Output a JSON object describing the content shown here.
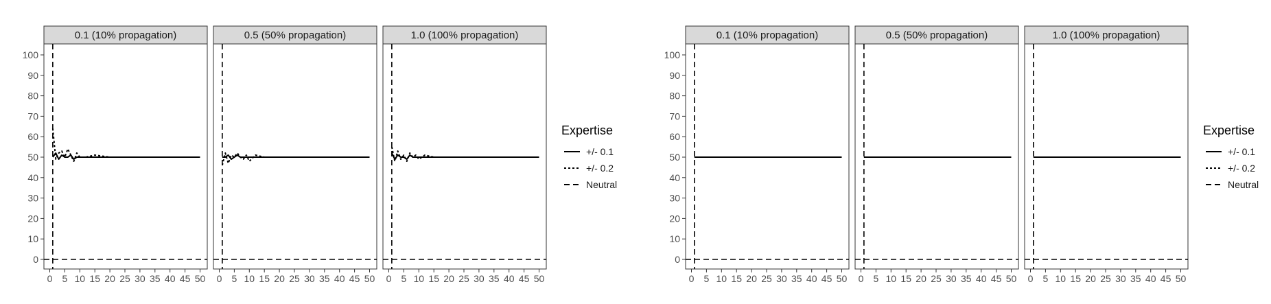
{
  "chart_data": [
    {
      "type": "line",
      "x_ticks": [
        0,
        5,
        10,
        15,
        20,
        25,
        30,
        35,
        40,
        45,
        50
      ],
      "y_ticks": [
        0,
        10,
        20,
        30,
        40,
        50,
        60,
        70,
        80,
        90,
        100
      ],
      "xlim": [
        0,
        50
      ],
      "ylim": [
        0,
        100
      ],
      "grid": false,
      "legend": {
        "title": "Expertise",
        "placement": "right",
        "items": [
          {
            "label": "+/- 0.1",
            "dash": "solid"
          },
          {
            "label": "+/- 0.2",
            "dash": "dotted"
          },
          {
            "label": "Neutral",
            "dash": "dashed"
          }
        ]
      },
      "reference_lines": {
        "vertical_x": 1,
        "horizontal_y": 0
      },
      "facets": [
        {
          "label": "0.1 (10% propagation)",
          "series": [
            {
              "name": "+/- 0.1",
              "x": [
                1,
                2,
                3,
                4,
                5,
                6,
                7,
                8,
                9,
                10,
                12,
                15,
                20,
                25,
                30,
                35,
                40,
                45,
                50
              ],
              "y": [
                50,
                52,
                49,
                51,
                50,
                50,
                51,
                49,
                50,
                50,
                50,
                50,
                50,
                50,
                50,
                50,
                50,
                50,
                50
              ]
            },
            {
              "name": "+/- 0.2",
              "x": [
                1,
                2,
                3,
                4,
                5,
                6,
                7,
                8,
                9,
                10,
                12,
                15,
                20,
                25,
                30,
                35,
                40,
                45,
                50
              ],
              "y": [
                64,
                49,
                52,
                53,
                50,
                54,
                51,
                48,
                52,
                50,
                50,
                51,
                50,
                50,
                50,
                50,
                50,
                50,
                50
              ]
            }
          ]
        },
        {
          "label": "0.5 (50% propagation)",
          "series": [
            {
              "name": "+/- 0.1",
              "x": [
                1,
                2,
                3,
                4,
                5,
                6,
                7,
                8,
                9,
                10,
                12,
                15,
                20,
                25,
                30,
                35,
                40,
                45,
                50
              ],
              "y": [
                50,
                50,
                51,
                49,
                50,
                51,
                50,
                50,
                50,
                50,
                50,
                50,
                50,
                50,
                50,
                50,
                50,
                50,
                50
              ]
            },
            {
              "name": "+/- 0.2",
              "x": [
                1,
                2,
                3,
                4,
                5,
                6,
                7,
                8,
                9,
                10,
                12,
                15,
                20,
                25,
                30,
                35,
                40,
                45,
                50
              ],
              "y": [
                46,
                52,
                47,
                51,
                50,
                52,
                50,
                49,
                51,
                48,
                51,
                50,
                50,
                50,
                50,
                50,
                50,
                50,
                50
              ]
            }
          ]
        },
        {
          "label": "1.0 (100% propagation)",
          "series": [
            {
              "name": "+/- 0.1",
              "x": [
                1,
                2,
                3,
                4,
                5,
                6,
                7,
                8,
                9,
                10,
                12,
                15,
                20,
                25,
                30,
                35,
                40,
                45,
                50
              ],
              "y": [
                52,
                49,
                51,
                50,
                50,
                49,
                51,
                50,
                50,
                50,
                50,
                50,
                50,
                50,
                50,
                50,
                50,
                50,
                50
              ]
            },
            {
              "name": "+/- 0.2",
              "x": [
                1,
                2,
                3,
                4,
                5,
                6,
                7,
                8,
                9,
                10,
                12,
                15,
                20,
                25,
                30,
                35,
                40,
                45,
                50
              ],
              "y": [
                55,
                48,
                53,
                49,
                51,
                48,
                52,
                50,
                51,
                49,
                51,
                50,
                50,
                50,
                50,
                50,
                50,
                50,
                50
              ]
            }
          ]
        }
      ]
    },
    {
      "type": "line",
      "x_ticks": [
        0,
        5,
        10,
        15,
        20,
        25,
        30,
        35,
        40,
        45,
        50
      ],
      "y_ticks": [
        0,
        10,
        20,
        30,
        40,
        50,
        60,
        70,
        80,
        90,
        100
      ],
      "xlim": [
        0,
        50
      ],
      "ylim": [
        0,
        100
      ],
      "grid": false,
      "legend": {
        "title": "Expertise",
        "placement": "right",
        "items": [
          {
            "label": "+/- 0.1",
            "dash": "solid"
          },
          {
            "label": "+/- 0.2",
            "dash": "dotted"
          },
          {
            "label": "Neutral",
            "dash": "dashed"
          }
        ]
      },
      "reference_lines": {
        "vertical_x": 1,
        "horizontal_y": 0
      },
      "facets": [
        {
          "label": "0.1 (10% propagation)",
          "series": [
            {
              "name": "+/- 0.1",
              "x": [
                1,
                5,
                10,
                15,
                20,
                25,
                30,
                35,
                40,
                45,
                50
              ],
              "y": [
                50,
                50,
                50,
                50,
                50,
                50,
                50,
                50,
                50,
                50,
                50
              ]
            },
            {
              "name": "+/- 0.2",
              "x": [
                1,
                5,
                10,
                15,
                20,
                25,
                30,
                35,
                40,
                45,
                50
              ],
              "y": [
                50,
                50,
                50,
                50,
                50,
                50,
                50,
                50,
                50,
                50,
                50
              ]
            }
          ]
        },
        {
          "label": "0.5 (50% propagation)",
          "series": [
            {
              "name": "+/- 0.1",
              "x": [
                1,
                5,
                10,
                15,
                20,
                25,
                30,
                35,
                40,
                45,
                50
              ],
              "y": [
                50,
                50,
                50,
                50,
                50,
                50,
                50,
                50,
                50,
                50,
                50
              ]
            },
            {
              "name": "+/- 0.2",
              "x": [
                1,
                5,
                10,
                15,
                20,
                25,
                30,
                35,
                40,
                45,
                50
              ],
              "y": [
                50,
                50,
                50,
                50,
                50,
                50,
                50,
                50,
                50,
                50,
                50
              ]
            }
          ]
        },
        {
          "label": "1.0 (100% propagation)",
          "series": [
            {
              "name": "+/- 0.1",
              "x": [
                1,
                5,
                10,
                15,
                20,
                25,
                30,
                35,
                40,
                45,
                50
              ],
              "y": [
                50,
                50,
                50,
                50,
                50,
                50,
                50,
                50,
                50,
                50,
                50
              ]
            },
            {
              "name": "+/- 0.2",
              "x": [
                1,
                5,
                10,
                15,
                20,
                25,
                30,
                35,
                40,
                45,
                50
              ],
              "y": [
                50,
                50,
                50,
                50,
                50,
                50,
                50,
                50,
                50,
                50,
                50
              ]
            }
          ]
        }
      ]
    }
  ]
}
